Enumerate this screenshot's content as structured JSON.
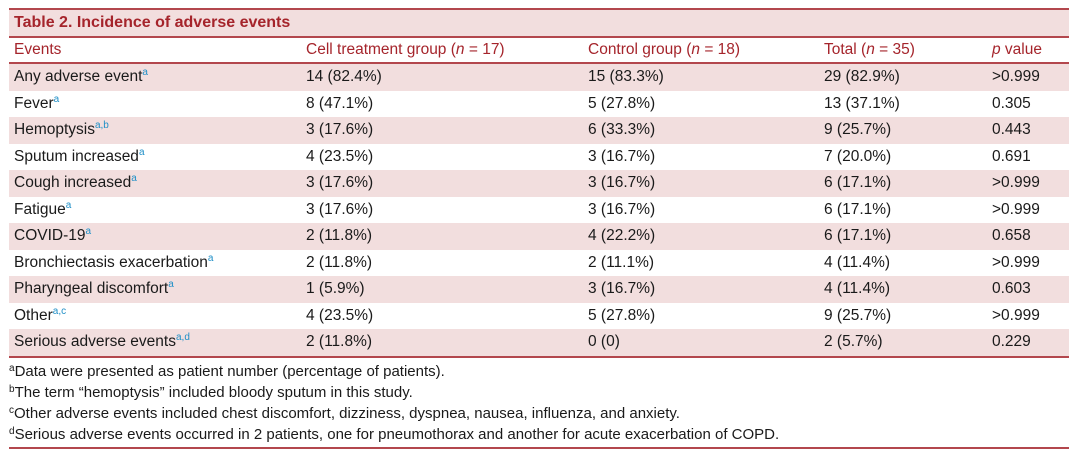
{
  "table": {
    "title": "Table 2.  Incidence of adverse events",
    "headers": [
      {
        "text": "Events",
        "n": ""
      },
      {
        "text": "Cell treatment group (",
        "n": "n",
        "rest": " = 17)"
      },
      {
        "text": "Control group (",
        "n": "n",
        "rest": " = 18)"
      },
      {
        "text": "Total (",
        "n": "n",
        "rest": " = 35)"
      },
      {
        "text": "",
        "n": "p",
        "rest": " value"
      }
    ],
    "rows": [
      {
        "event": "Any adverse event",
        "sup": "a",
        "cell": "14 (82.4%)",
        "control": "15 (83.3%)",
        "total": "29 (82.9%)",
        "p": ">0.999"
      },
      {
        "event": "Fever",
        "sup": "a",
        "cell": "8 (47.1%)",
        "control": "5 (27.8%)",
        "total": "13 (37.1%)",
        "p": "0.305"
      },
      {
        "event": "Hemoptysis",
        "sup": "a,b",
        "cell": "3 (17.6%)",
        "control": "6 (33.3%)",
        "total": "9 (25.7%)",
        "p": "0.443"
      },
      {
        "event": "Sputum increased",
        "sup": "a",
        "cell": "4 (23.5%)",
        "control": "3 (16.7%)",
        "total": "7 (20.0%)",
        "p": "0.691"
      },
      {
        "event": "Cough increased",
        "sup": "a",
        "cell": "3 (17.6%)",
        "control": "3 (16.7%)",
        "total": "6 (17.1%)",
        "p": ">0.999"
      },
      {
        "event": "Fatigue",
        "sup": "a",
        "cell": "3 (17.6%)",
        "control": "3 (16.7%)",
        "total": "6 (17.1%)",
        "p": ">0.999"
      },
      {
        "event": "COVID-19",
        "sup": "a",
        "cell": "2 (11.8%)",
        "control": "4 (22.2%)",
        "total": "6 (17.1%)",
        "p": "0.658"
      },
      {
        "event": "Bronchiectasis exacerbation",
        "sup": "a",
        "cell": "2 (11.8%)",
        "control": "2 (11.1%)",
        "total": "4 (11.4%)",
        "p": ">0.999"
      },
      {
        "event": "Pharyngeal discomfort",
        "sup": "a",
        "cell": "1 (5.9%)",
        "control": "3 (16.7%)",
        "total": "4 (11.4%)",
        "p": "0.603"
      },
      {
        "event": "Other",
        "sup": "a,c",
        "cell": "4 (23.5%)",
        "control": "5 (27.8%)",
        "total": "9 (25.7%)",
        "p": ">0.999"
      },
      {
        "event": "Serious adverse events",
        "sup": "a,d",
        "cell": "2 (11.8%)",
        "control": "0 (0)",
        "total": "2 (5.7%)",
        "p": "0.229"
      }
    ],
    "footnotes": [
      {
        "mark": "a",
        "text": "Data were presented as patient number (percentage of patients)."
      },
      {
        "mark": "b",
        "text": "The term “hemoptysis” included bloody sputum in this study."
      },
      {
        "mark": "c",
        "text": "Other adverse events included chest discomfort, dizziness, dyspnea, nausea, influenza, and anxiety."
      },
      {
        "mark": "d",
        "text": "Serious adverse events occurred in 2 patients, one for pneumothorax and another for acute exacerbation of COPD."
      }
    ]
  }
}
